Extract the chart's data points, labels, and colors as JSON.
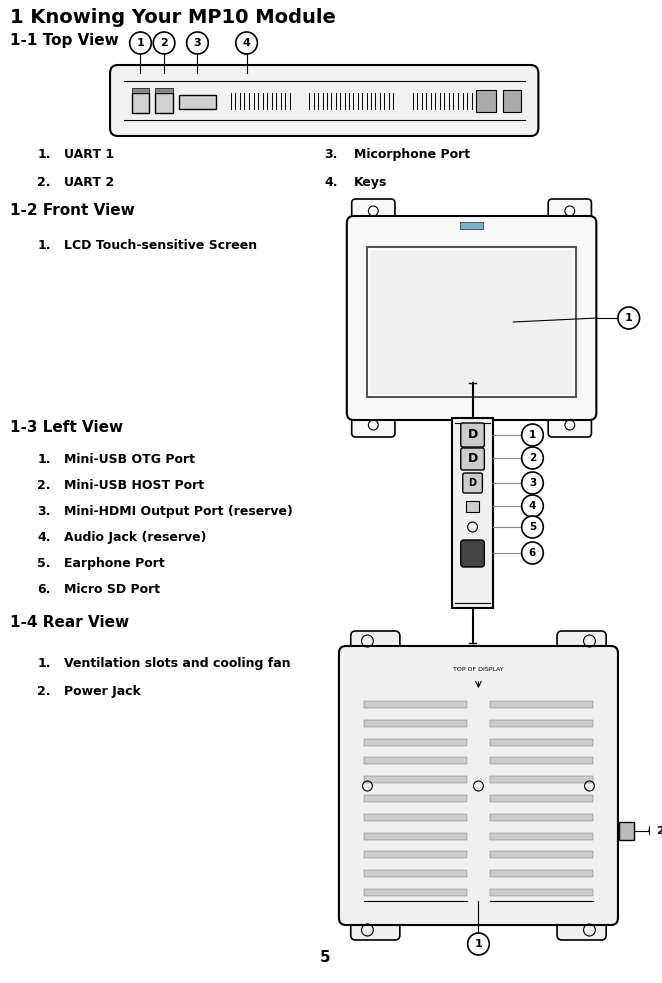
{
  "title": "1 Knowing Your MP10 Module",
  "bg_color": "#ffffff",
  "top_view_col1": [
    [
      "1.",
      "UART 1"
    ],
    [
      "2.",
      "UART 2"
    ]
  ],
  "top_view_col2": [
    [
      "3.",
      "Micorphone Port"
    ],
    [
      "4.",
      "Keys"
    ]
  ],
  "front_view_items": [
    [
      "1.",
      "LCD Touch-sensitive Screen"
    ]
  ],
  "left_view_items": [
    [
      "1.",
      "Mini-USB OTG Port"
    ],
    [
      "2.",
      "Mini-USB HOST Port"
    ],
    [
      "3.",
      "Mini-HDMI Output Port (reserve)"
    ],
    [
      "4.",
      "Audio Jack (reserve)"
    ],
    [
      "5.",
      "Earphone Port"
    ],
    [
      "6.",
      "Micro SD Port"
    ]
  ],
  "rear_view_items": [
    [
      "1.",
      "Ventilation slots and cooling fan"
    ],
    [
      "2.",
      "Power Jack"
    ]
  ],
  "page_number": "5",
  "section_titles": [
    "1-1 Top View",
    "1-2 Front View",
    "1-3 Left View",
    "1-4 Rear View"
  ]
}
